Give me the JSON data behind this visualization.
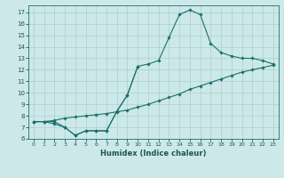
{
  "xlabel": "Humidex (Indice chaleur)",
  "xlim": [
    -0.5,
    23.5
  ],
  "ylim": [
    6,
    17.6
  ],
  "yticks": [
    6,
    7,
    8,
    9,
    10,
    11,
    12,
    13,
    14,
    15,
    16,
    17
  ],
  "xticks": [
    0,
    1,
    2,
    3,
    4,
    5,
    6,
    7,
    8,
    9,
    10,
    11,
    12,
    13,
    14,
    15,
    16,
    17,
    18,
    19,
    20,
    21,
    22,
    23
  ],
  "bg_color": "#cde8e8",
  "grid_color": "#aad0d0",
  "line_color": "#1a7070",
  "line_peaked_x": [
    0,
    1,
    2,
    3,
    4,
    5,
    6,
    7,
    8,
    9,
    10,
    11,
    12,
    13,
    14,
    15,
    16,
    17,
    18,
    19,
    20,
    21,
    22,
    23
  ],
  "line_peaked_y": [
    7.5,
    7.5,
    7.5,
    7.0,
    6.3,
    6.7,
    6.7,
    6.7,
    8.4,
    9.8,
    12.3,
    12.5,
    12.8,
    14.8,
    16.8,
    17.2,
    16.8,
    14.3,
    13.5,
    13.2,
    13.0,
    13.0,
    12.8,
    12.5
  ],
  "line_straight_x": [
    0,
    1,
    2,
    3,
    4,
    5,
    6,
    7,
    8,
    9,
    10,
    11,
    12,
    13,
    14,
    15,
    16,
    17,
    18,
    19,
    20,
    21,
    22,
    23
  ],
  "line_straight_y": [
    7.5,
    7.5,
    7.6,
    7.8,
    7.9,
    8.0,
    8.1,
    8.2,
    8.35,
    8.5,
    8.75,
    9.0,
    9.3,
    9.6,
    9.9,
    10.3,
    10.6,
    10.9,
    11.2,
    11.5,
    11.8,
    12.0,
    12.2,
    12.4
  ],
  "line_dip_x": [
    0,
    1,
    2,
    3,
    4,
    5,
    6,
    7,
    8,
    9,
    10
  ],
  "line_dip_y": [
    7.5,
    7.5,
    7.3,
    7.0,
    6.3,
    6.7,
    6.7,
    6.7,
    8.4,
    9.8,
    12.3
  ]
}
